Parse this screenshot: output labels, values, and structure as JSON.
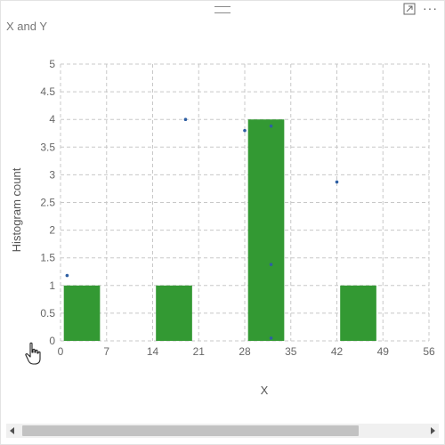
{
  "visual": {
    "title": "X and Y",
    "more_options_glyph": "···",
    "icons": {
      "drag": "drag-handle-icon",
      "focus": "focus-mode-icon",
      "more": "more-options-icon",
      "cursor": "hand-pointer-icon"
    }
  },
  "chart_data": {
    "type": "bar",
    "title": "X and Y",
    "xlabel": "X",
    "ylabel": "Histogram count",
    "xlim": [
      0,
      56
    ],
    "ylim": [
      0,
      5
    ],
    "x_ticks": [
      "0",
      "7",
      "14",
      "21",
      "28",
      "35",
      "42",
      "49",
      "56"
    ],
    "y_ticks": [
      "0",
      "0.5",
      "1",
      "1.5",
      "2",
      "2.5",
      "3",
      "3.5",
      "4",
      "4.5",
      "5"
    ],
    "grid": true,
    "bar_color": "#339933",
    "point_color": "#2e5fa3",
    "bars": [
      {
        "x0": 0.5,
        "x1": 6,
        "count": 1
      },
      {
        "x0": 14.5,
        "x1": 20,
        "count": 1
      },
      {
        "x0": 28.5,
        "x1": 34,
        "count": 4
      },
      {
        "x0": 42.5,
        "x1": 48,
        "count": 1
      }
    ],
    "points": [
      {
        "x": 1,
        "y": 1.18
      },
      {
        "x": 19,
        "y": 4.0
      },
      {
        "x": 28,
        "y": 3.8
      },
      {
        "x": 32,
        "y": 3.88
      },
      {
        "x": 32,
        "y": 1.38
      },
      {
        "x": 32,
        "y": 0.05
      },
      {
        "x": 42,
        "y": 2.87
      }
    ]
  }
}
